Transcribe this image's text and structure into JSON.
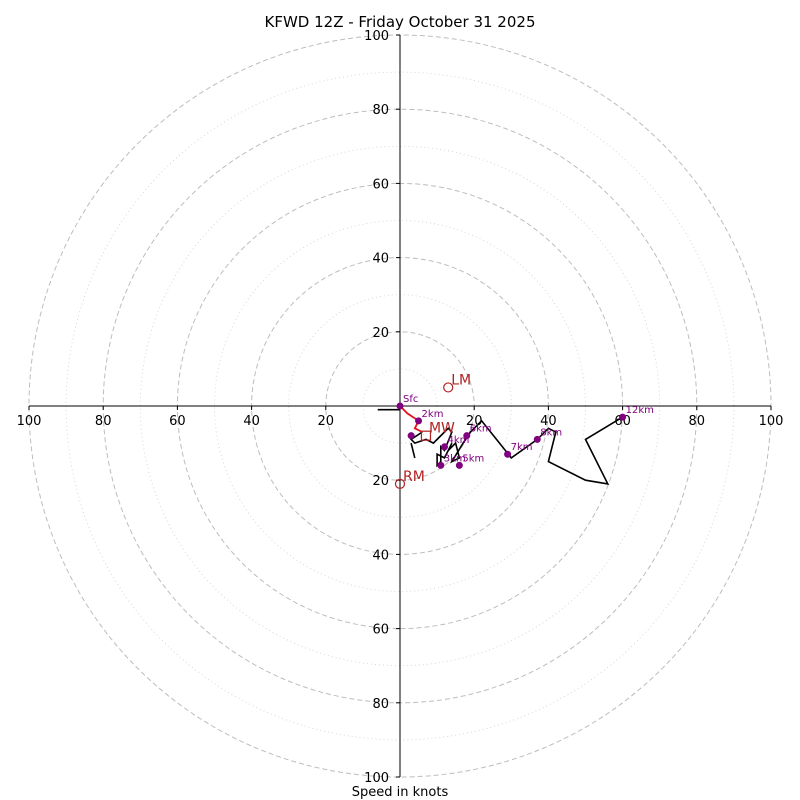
{
  "chart_data": {
    "type": "hodograph",
    "title": "KFWD 12Z - Friday October 31 2025",
    "xlabel": "Speed in knots",
    "units": "knots",
    "range": [
      -100,
      100
    ],
    "major_rings": [
      20,
      40,
      60,
      80,
      100
    ],
    "minor_rings": [
      10,
      30,
      50,
      70,
      90
    ],
    "x_ticks": [
      "100",
      "80",
      "60",
      "40",
      "20",
      "20",
      "40",
      "60",
      "80",
      "100"
    ],
    "x_tick_values": [
      -100,
      -80,
      -60,
      -40,
      -20,
      20,
      40,
      60,
      80,
      100
    ],
    "y_ticks": [
      "100",
      "80",
      "60",
      "40",
      "20",
      "20",
      "40",
      "60",
      "80",
      "100"
    ],
    "y_tick_values": [
      100,
      80,
      60,
      40,
      20,
      -20,
      -40,
      -60,
      -80,
      -100
    ],
    "hodograph_low_level": [
      [
        0,
        0
      ],
      [
        2,
        -2
      ],
      [
        5,
        -4
      ],
      [
        4,
        -6
      ],
      [
        6,
        -7
      ]
    ],
    "hodograph": [
      [
        6,
        -7
      ],
      [
        3,
        -9
      ],
      [
        4,
        -10
      ],
      [
        7,
        -9
      ],
      [
        9,
        -10
      ],
      [
        12,
        -7
      ],
      [
        13,
        -6
      ],
      [
        14,
        -7
      ],
      [
        12,
        -12
      ],
      [
        11,
        -11
      ],
      [
        11,
        -15
      ],
      [
        10,
        -16
      ],
      [
        10,
        -13
      ],
      [
        12,
        -14
      ],
      [
        14,
        -10
      ],
      [
        13,
        -12
      ],
      [
        15,
        -10
      ],
      [
        16,
        -14
      ],
      [
        14,
        -15
      ],
      [
        17,
        -10
      ],
      [
        19,
        -7
      ],
      [
        22,
        -4
      ],
      [
        26,
        -9
      ],
      [
        30,
        -14
      ],
      [
        37,
        -9
      ],
      [
        40,
        -6
      ],
      [
        42,
        -7
      ],
      [
        40,
        -15
      ],
      [
        50,
        -20
      ],
      [
        56,
        -21
      ],
      [
        50,
        -9
      ],
      [
        55,
        -6
      ],
      [
        60,
        -3
      ]
    ],
    "secondary_trace": [
      [
        -6,
        -1
      ],
      [
        0,
        -1
      ]
    ],
    "branch_trace": [
      [
        3,
        -10
      ],
      [
        4,
        -14
      ]
    ],
    "height_markers": [
      {
        "label": "Sfc",
        "u": 0,
        "v": 0
      },
      {
        "label": "",
        "u": 3,
        "v": -8
      },
      {
        "label": "2km",
        "u": 5,
        "v": -4
      },
      {
        "label": "3km",
        "u": 11,
        "v": -16
      },
      {
        "label": "4km",
        "u": 12,
        "v": -11
      },
      {
        "label": "5km",
        "u": 16,
        "v": -16
      },
      {
        "label": "6km",
        "u": 18,
        "v": -8
      },
      {
        "label": "7km",
        "u": 29,
        "v": -13
      },
      {
        "label": "8km",
        "u": 37,
        "v": -9
      },
      {
        "label": "12km",
        "u": 60,
        "v": -3
      }
    ],
    "storm_motions": [
      {
        "label": "LM",
        "u": 13,
        "v": 5,
        "marker": "circle"
      },
      {
        "label": "RM",
        "u": 0,
        "v": -21,
        "marker": "circle"
      },
      {
        "label": "MW",
        "u": 7,
        "v": -8,
        "marker": "square"
      }
    ]
  }
}
